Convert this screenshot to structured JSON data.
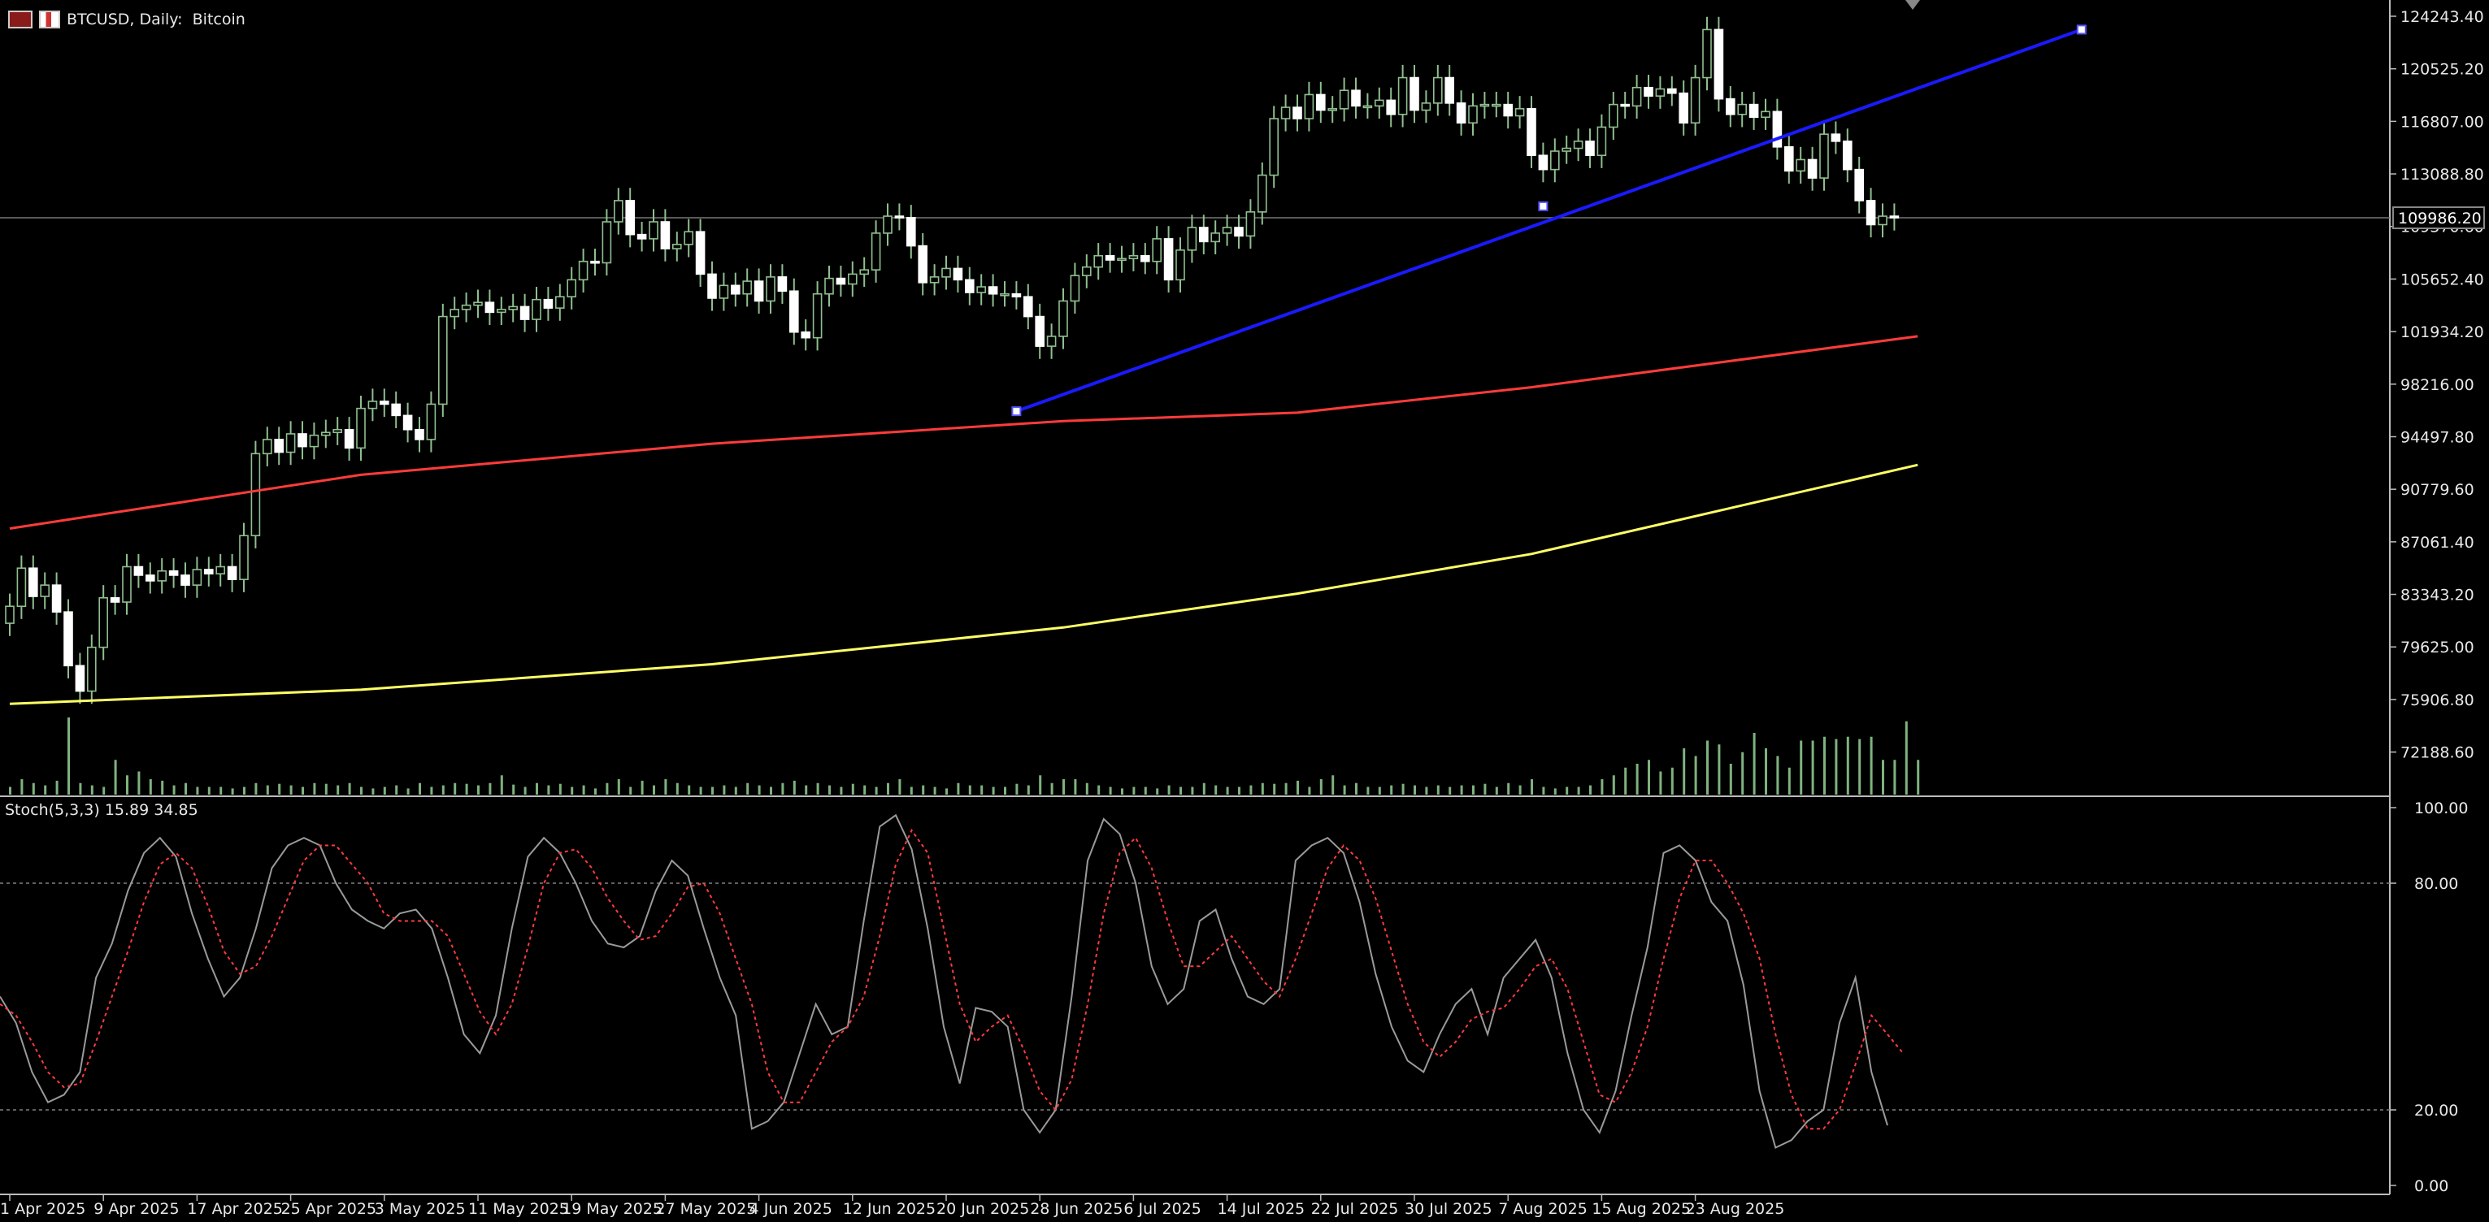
{
  "header": {
    "symbol_label": "BTCUSD, Daily:  Bitcoin",
    "window_icon": "grid-icon",
    "chart_icon": "candlestick-icon"
  },
  "colors": {
    "background": "#000000",
    "candle": "#ffffff",
    "wick": "#8fbf8f",
    "volume": "#7fb27f",
    "ma_fast": "#ff3b3b",
    "ma_slow": "#ffff66",
    "trendline": "#1a1aff",
    "stoch_main": "#9a9a9a",
    "stoch_signal": "#ff3b3b",
    "grid_level": "#808080"
  },
  "chart_data": [
    {
      "type": "candlestick",
      "title": "BTCUSD, Daily:  Bitcoin",
      "current_price_label": "109986.20",
      "current_price": 109986.2,
      "ylim": [
        71188.6,
        124243.4
      ],
      "y_ticks": [
        "124243.40",
        "120525.20",
        "116807.00",
        "113088.80",
        "109370.60",
        "105652.40",
        "101934.20",
        "98216.00",
        "94497.80",
        "90779.60",
        "87061.40",
        "83343.20",
        "79625.00",
        "75906.80",
        "72188.60"
      ],
      "x_ticks": [
        "1 Apr 2025",
        "9 Apr 2025",
        "17 Apr 2025",
        "25 Apr 2025",
        "3 May 2025",
        "11 May 2025",
        "19 May 2025",
        "27 May 2025",
        "4 Jun 2025",
        "12 Jun 2025",
        "20 Jun 2025",
        "28 Jun 2025",
        "6 Jul 2025",
        "14 Jul 2025",
        "22 Jul 2025",
        "30 Jul 2025",
        "7 Aug 2025",
        "15 Aug 2025",
        "23 Aug 2025"
      ],
      "close": [
        82500,
        85200,
        83200,
        84000,
        82100,
        78300,
        76500,
        79600,
        83100,
        82800,
        85300,
        84700,
        84300,
        85000,
        84700,
        84000,
        85100,
        84800,
        85300,
        84400,
        87500,
        93300,
        94300,
        93400,
        94700,
        93800,
        94600,
        94800,
        95000,
        93700,
        96500,
        97000,
        96800,
        96000,
        95000,
        94300,
        96800,
        103000,
        103500,
        103800,
        104000,
        103300,
        103500,
        103700,
        102800,
        104200,
        103600,
        104400,
        105600,
        106900,
        106800,
        109700,
        111200,
        108800,
        108500,
        109700,
        107800,
        108100,
        109000,
        106000,
        104300,
        105200,
        104600,
        105500,
        104100,
        105800,
        104800,
        101900,
        101500,
        104600,
        105700,
        105300,
        106000,
        106300,
        108900,
        110100,
        110000,
        108000,
        105400,
        105800,
        106400,
        105600,
        104700,
        105100,
        104600,
        104600,
        104400,
        103000,
        100900,
        101600,
        104100,
        105900,
        106500,
        107300,
        107000,
        107100,
        107300,
        106900,
        108500,
        105600,
        107700,
        109300,
        108300,
        108900,
        109300,
        108700,
        110400,
        113000,
        117000,
        117800,
        117000,
        118700,
        117600,
        117700,
        119000,
        117900,
        117900,
        118300,
        117300,
        119900,
        117600,
        118100,
        119900,
        118100,
        116700,
        117900,
        118000,
        118000,
        117200,
        117700,
        114400,
        113400,
        114700,
        114900,
        115400,
        114400,
        116400,
        118000,
        117900,
        119200,
        118600,
        119100,
        118800,
        116700,
        119900,
        123300,
        118400,
        117300,
        118000,
        117100,
        117500,
        115000,
        113300,
        114100,
        112800,
        115900,
        115400,
        113400,
        111200,
        109500,
        110100,
        109986.2
      ],
      "volume_relative": [
        0.1,
        0.2,
        0.15,
        0.12,
        0.18,
        1.0,
        0.15,
        0.12,
        0.1,
        0.45,
        0.25,
        0.3,
        0.2,
        0.18,
        0.12,
        0.15,
        0.1,
        0.1,
        0.1,
        0.08,
        0.1,
        0.15,
        0.12,
        0.14,
        0.12,
        0.1,
        0.15,
        0.14,
        0.12,
        0.15,
        0.1,
        0.08,
        0.1,
        0.12,
        0.08,
        0.15,
        0.1,
        0.12,
        0.15,
        0.14,
        0.12,
        0.15,
        0.25,
        0.13,
        0.1,
        0.15,
        0.12,
        0.14,
        0.1,
        0.12,
        0.08,
        0.15,
        0.2,
        0.1,
        0.18,
        0.12,
        0.2,
        0.15,
        0.12,
        0.1,
        0.1,
        0.12,
        0.1,
        0.15,
        0.12,
        0.1,
        0.15,
        0.18,
        0.12,
        0.15,
        0.12,
        0.1,
        0.14,
        0.12,
        0.1,
        0.15,
        0.2,
        0.1,
        0.12,
        0.1,
        0.08,
        0.15,
        0.12,
        0.12,
        0.1,
        0.1,
        0.14,
        0.12,
        0.25,
        0.15,
        0.2,
        0.2,
        0.15,
        0.12,
        0.1,
        0.08,
        0.1,
        0.1,
        0.08,
        0.12,
        0.1,
        0.1,
        0.15,
        0.12,
        0.1,
        0.1,
        0.12,
        0.15,
        0.14,
        0.15,
        0.18,
        0.1,
        0.2,
        0.25,
        0.12,
        0.15,
        0.1,
        0.1,
        0.12,
        0.14,
        0.12,
        0.1,
        0.12,
        0.1,
        0.12,
        0.12,
        0.14,
        0.1,
        0.15,
        0.12,
        0.2,
        0.1,
        0.08,
        0.1,
        0.1,
        0.12,
        0.2,
        0.25,
        0.35,
        0.4,
        0.45,
        0.3,
        0.35,
        0.6,
        0.5,
        0.7,
        0.65,
        0.4,
        0.55,
        0.8,
        0.6,
        0.5,
        0.35,
        0.7,
        0.7,
        0.75,
        0.72,
        0.75,
        0.72,
        0.75,
        0.45,
        0.45,
        0.95,
        0.45
      ],
      "ma_fast": {
        "start": 88000,
        "end": 101600,
        "knots": [
          [
            0,
            88000
          ],
          [
            30,
            91800
          ],
          [
            60,
            94000
          ],
          [
            90,
            95600
          ],
          [
            110,
            96200
          ],
          [
            130,
            98000
          ],
          [
            163,
            101600
          ]
        ]
      },
      "ma_slow": {
        "start": 75600,
        "end": 92500,
        "knots": [
          [
            0,
            75600
          ],
          [
            30,
            76600
          ],
          [
            60,
            78400
          ],
          [
            90,
            81000
          ],
          [
            110,
            83400
          ],
          [
            130,
            86200
          ],
          [
            163,
            92500
          ]
        ]
      },
      "trendline": {
        "points": [
          [
            86,
            96300
          ],
          [
            131,
            110800
          ],
          [
            177,
            123300
          ]
        ]
      }
    },
    {
      "type": "line",
      "title": "Stoch(5,3,3) 15.89 34.85",
      "indicator": "Stoch(5,3,3)",
      "main_value": 15.89,
      "signal_value": 34.85,
      "ylim": [
        0,
        100
      ],
      "y_ticks": [
        "100.00",
        "80.00",
        "20.00",
        "0.00"
      ],
      "levels": [
        80,
        20
      ],
      "main": [
        50,
        43,
        30,
        22,
        24,
        30,
        55,
        64,
        78,
        88,
        92,
        87,
        72,
        60,
        50,
        55,
        68,
        84,
        90,
        92,
        90,
        80,
        73,
        70,
        68,
        72,
        73,
        68,
        55,
        40,
        35,
        45,
        68,
        87,
        92,
        88,
        80,
        70,
        64,
        63,
        66,
        78,
        86,
        82,
        68,
        55,
        45,
        15,
        17,
        22,
        35,
        48,
        40,
        42,
        70,
        95,
        98,
        89,
        68,
        42,
        27,
        47,
        46,
        42,
        20,
        14,
        20,
        50,
        86,
        97,
        93,
        80,
        58,
        48,
        52,
        70,
        73,
        60,
        50,
        48,
        52,
        86,
        90,
        92,
        88,
        75,
        56,
        42,
        33,
        30,
        40,
        48,
        52,
        40,
        55,
        60,
        65,
        55,
        35,
        20,
        14,
        25,
        45,
        63,
        88,
        90,
        86,
        75,
        70,
        53,
        25,
        10,
        12,
        17,
        20,
        43,
        55,
        30,
        15.89
      ],
      "signal": [
        48,
        45,
        38,
        30,
        26,
        27,
        38,
        50,
        62,
        75,
        85,
        88,
        84,
        74,
        62,
        56,
        58,
        66,
        76,
        86,
        90,
        90,
        85,
        80,
        72,
        70,
        70,
        70,
        66,
        56,
        46,
        40,
        48,
        63,
        80,
        88,
        89,
        84,
        76,
        70,
        65,
        66,
        72,
        79,
        80,
        72,
        60,
        48,
        30,
        22,
        22,
        30,
        38,
        42,
        50,
        66,
        85,
        94,
        88,
        68,
        48,
        38,
        42,
        45,
        36,
        25,
        20,
        28,
        48,
        72,
        88,
        92,
        84,
        70,
        58,
        58,
        62,
        66,
        60,
        54,
        50,
        60,
        72,
        84,
        90,
        86,
        76,
        62,
        48,
        38,
        34,
        38,
        44,
        46,
        47,
        52,
        58,
        60,
        52,
        38,
        24,
        22,
        30,
        42,
        60,
        76,
        86,
        86,
        80,
        72,
        60,
        40,
        24,
        15,
        15,
        20,
        32,
        45,
        40,
        34.85
      ]
    }
  ]
}
